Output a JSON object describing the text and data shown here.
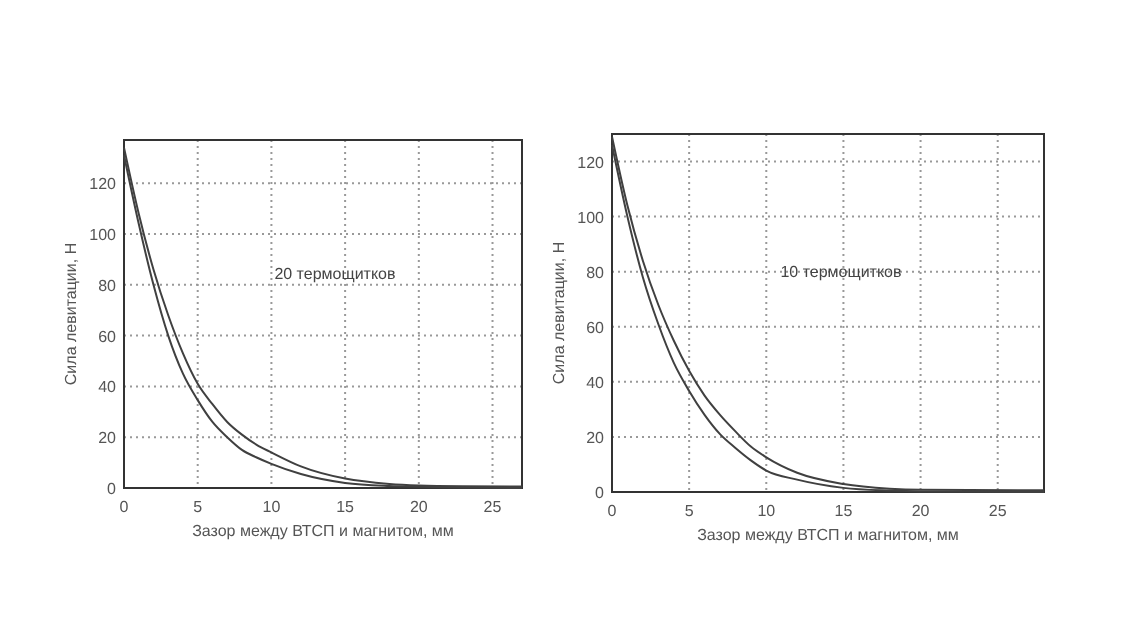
{
  "chart_data": [
    {
      "type": "line",
      "annotations": [
        "20 термощитков"
      ],
      "xlabel": "Зазор между ВТСП и магнитом, мм",
      "ylabel": "Сила левитации, Н",
      "xlim": [
        0,
        27
      ],
      "ylim": [
        0,
        137
      ],
      "xticks": [
        0,
        5,
        10,
        15,
        20,
        25
      ],
      "yticks": [
        0,
        20,
        40,
        60,
        80,
        100,
        120
      ],
      "grid": true,
      "line_style": "solid",
      "marker": "none",
      "series": [
        {
          "color": "#404040",
          "x": [
            0,
            1,
            2,
            3,
            4,
            5,
            6,
            7,
            8,
            9,
            10,
            12,
            15,
            18,
            20,
            23,
            27
          ],
          "values": [
            134,
            108,
            86,
            68,
            53,
            41,
            33,
            26,
            21,
            17,
            14,
            8.5,
            3.7,
            1.6,
            1,
            0.7,
            0.6
          ]
        },
        {
          "color": "#404040",
          "x": [
            0,
            1,
            2,
            3,
            4,
            5,
            6,
            7,
            8,
            9,
            10,
            12,
            15,
            18,
            20,
            23,
            27
          ],
          "values": [
            131,
            104,
            80,
            60,
            45,
            34.6,
            26,
            20,
            15,
            12,
            9.5,
            5.5,
            2,
            0.8,
            0.5,
            0.2,
            0
          ]
        }
      ]
    },
    {
      "type": "line",
      "annotations": [
        "10 термощитков"
      ],
      "xlabel": "Зазор между ВТСП и магнитом, мм",
      "ylabel": "Сила левитации, Н",
      "xlim": [
        0,
        28
      ],
      "ylim": [
        0,
        130
      ],
      "xticks": [
        0,
        5,
        10,
        15,
        20,
        25
      ],
      "yticks": [
        0,
        20,
        40,
        60,
        80,
        100,
        120
      ],
      "grid": true,
      "line_style": "solid",
      "marker": "none",
      "series": [
        {
          "color": "#404040",
          "x": [
            0,
            1,
            2,
            3,
            4,
            5,
            6,
            7,
            8,
            9,
            10,
            12,
            15,
            18,
            20,
            28
          ],
          "values": [
            129,
            104,
            84,
            68,
            55,
            44,
            35,
            28,
            22,
            16.5,
            12.6,
            7,
            2.9,
            1.2,
            0.8,
            0.6
          ]
        },
        {
          "color": "#404040",
          "x": [
            0,
            1,
            2,
            3,
            4,
            5,
            6,
            7,
            8,
            9,
            10,
            12,
            15,
            18,
            20,
            28
          ],
          "values": [
            126,
            100,
            78,
            61,
            47,
            36.7,
            28,
            21,
            16,
            11.5,
            7.8,
            4.5,
            1.5,
            0.5,
            0.2,
            0
          ]
        }
      ]
    }
  ]
}
